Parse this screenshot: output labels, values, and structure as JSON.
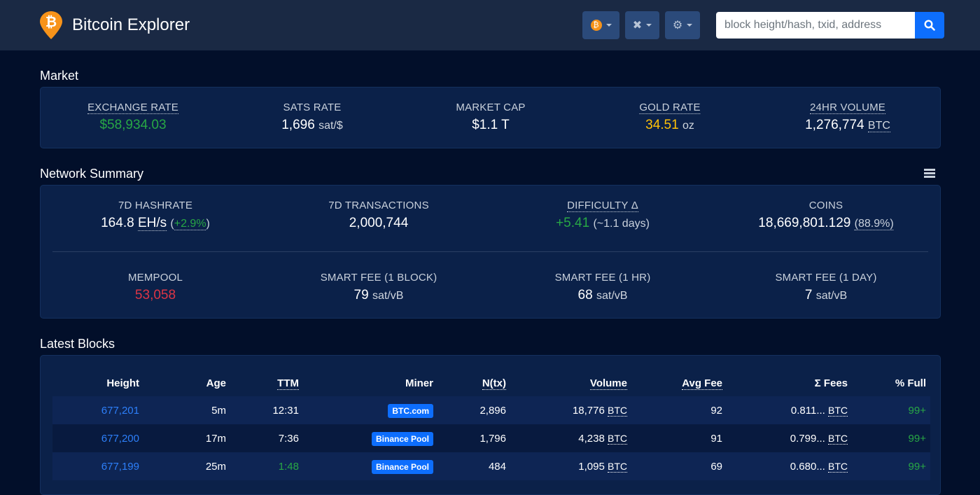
{
  "header": {
    "brand": "Bitcoin Explorer",
    "search_placeholder": "block height/hash, txid, address"
  },
  "market": {
    "title": "Market",
    "exchange_rate": {
      "label": "EXCHANGE RATE",
      "value": "$58,934.03"
    },
    "sats_rate": {
      "label": "SATS RATE",
      "value": "1,696",
      "unit": "sat/$"
    },
    "market_cap": {
      "label": "MARKET CAP",
      "value": "$1.1 T"
    },
    "gold_rate": {
      "label": "GOLD RATE",
      "value": "34.51",
      "unit": "oz"
    },
    "volume": {
      "label": "24HR VOLUME",
      "value": "1,276,774",
      "unit": "BTC"
    }
  },
  "network": {
    "title": "Network Summary",
    "hashrate": {
      "label": "7D HASHRATE",
      "value": "164.8",
      "unit": "EH/s",
      "change": "+2.9%"
    },
    "transactions": {
      "label": "7D TRANSACTIONS",
      "value": "2,000,744"
    },
    "difficulty": {
      "label": "DIFFICULTY Δ",
      "value": "+5.41",
      "note": "(~1.1 days)"
    },
    "coins": {
      "label": "COINS",
      "value": "18,669,801.129",
      "note": "(88.9%)"
    },
    "mempool": {
      "label": "MEMPOOL",
      "value": "53,058"
    },
    "fee1": {
      "label": "SMART FEE (1 BLOCK)",
      "value": "79",
      "unit": "sat/vB"
    },
    "fee2": {
      "label": "SMART FEE (1 HR)",
      "value": "68",
      "unit": "sat/vB"
    },
    "fee3": {
      "label": "SMART FEE (1 DAY)",
      "value": "7",
      "unit": "sat/vB"
    }
  },
  "blocks": {
    "title": "Latest Blocks",
    "columns": [
      "Height",
      "Age",
      "TTM",
      "Miner",
      "N(tx)",
      "Volume",
      "Avg Fee",
      "Σ Fees",
      "% Full"
    ],
    "unit": "BTC",
    "rows": [
      {
        "height": "677,201",
        "age": "5m",
        "ttm": "12:31",
        "miner": "BTC.com",
        "ntx": "2,896",
        "volume": "18,776",
        "avg_fee": "92",
        "fees": "0.811...",
        "full": "99+"
      },
      {
        "height": "677,200",
        "age": "17m",
        "ttm": "7:36",
        "miner": "Binance Pool",
        "ntx": "1,796",
        "volume": "4,238",
        "avg_fee": "91",
        "fees": "0.799...",
        "full": "99+"
      },
      {
        "height": "677,199",
        "age": "25m",
        "ttm": "1:48",
        "miner": "Binance Pool",
        "ntx": "484",
        "volume": "1,095",
        "avg_fee": "69",
        "fees": "0.680...",
        "full": "99+"
      }
    ]
  }
}
